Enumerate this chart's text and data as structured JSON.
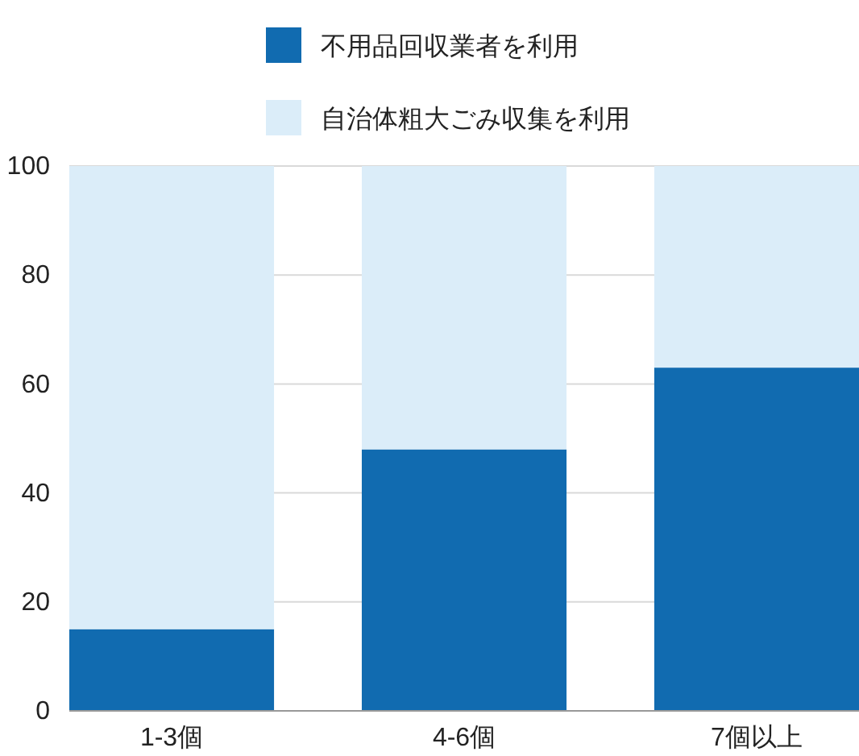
{
  "chart_data": {
    "type": "bar",
    "stacked": true,
    "categories": [
      "1-3個",
      "4-6個",
      "7個以上"
    ],
    "series": [
      {
        "name": "不用品回収業者を利用",
        "color": "#116bb0",
        "values": [
          15,
          48,
          63
        ]
      },
      {
        "name": "自治体粗大ごみ収集を利用",
        "color": "#dbedf9",
        "values": [
          85,
          52,
          37
        ]
      }
    ],
    "ylim": [
      0,
      100
    ],
    "yticks": [
      0,
      20,
      40,
      60,
      80,
      100
    ],
    "grid": "y",
    "legend": "top"
  }
}
